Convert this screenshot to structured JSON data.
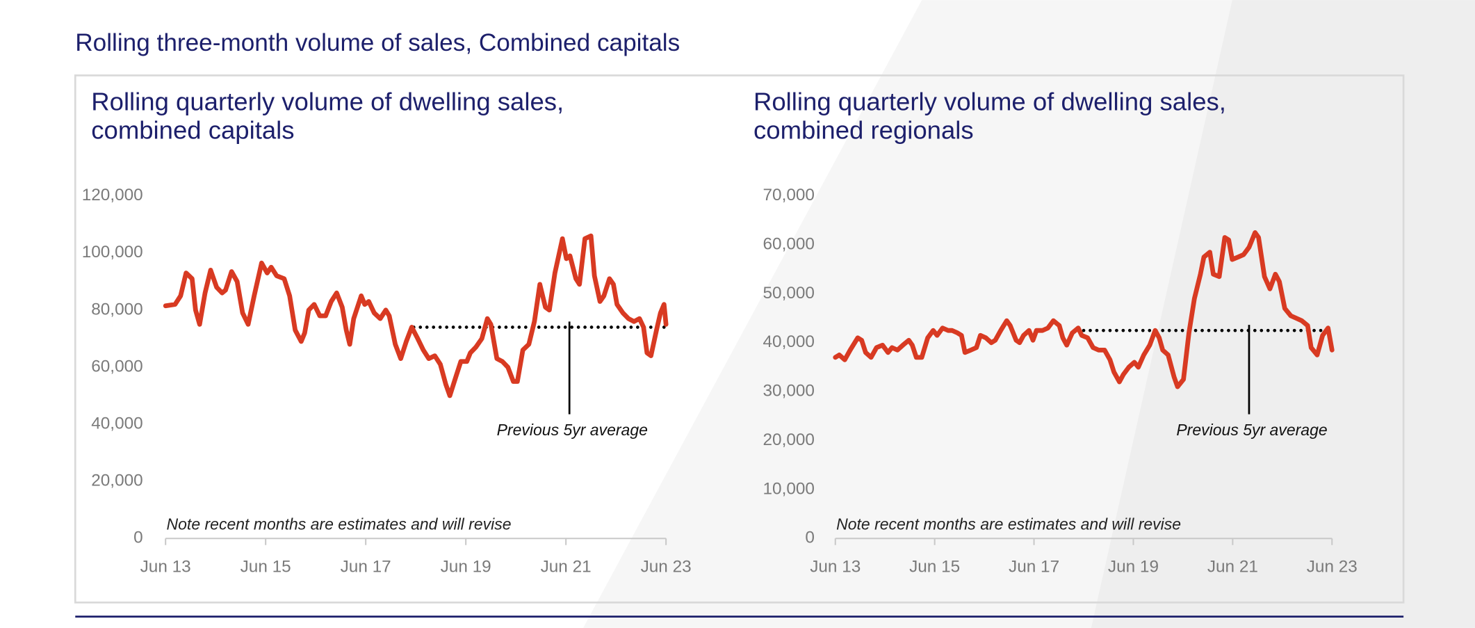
{
  "title": "Rolling three-month volume of sales, Combined capitals",
  "chart_data": [
    {
      "type": "line",
      "title": [
        "Rolling quarterly volume of dwelling sales,",
        "combined capitals"
      ],
      "color": "#d83a22",
      "x": [
        2013.5,
        2013.69,
        2013.8,
        2013.91,
        2014.03,
        2014.1,
        2014.18,
        2014.29,
        2014.4,
        2014.52,
        2014.63,
        2014.7,
        2014.82,
        2014.93,
        2015.04,
        2015.15,
        2015.27,
        2015.42,
        2015.53,
        2015.61,
        2015.72,
        2015.87,
        2015.98,
        2016.09,
        2016.21,
        2016.28,
        2016.36,
        2016.47,
        2016.58,
        2016.7,
        2016.81,
        2016.92,
        2017.03,
        2017.11,
        2017.18,
        2017.26,
        2017.41,
        2017.48,
        2017.56,
        2017.67,
        2017.79,
        2017.9,
        2017.97,
        2018.09,
        2018.2,
        2018.31,
        2018.42,
        2018.54,
        2018.65,
        2018.76,
        2018.88,
        2018.99,
        2019.1,
        2019.18,
        2019.29,
        2019.4,
        2019.52,
        2019.59,
        2019.7,
        2019.82,
        2019.93,
        2020.0,
        2020.12,
        2020.23,
        2020.34,
        2020.45,
        2020.53,
        2020.64,
        2020.76,
        2020.87,
        2020.98,
        2021.09,
        2021.17,
        2021.28,
        2021.43,
        2021.51,
        2021.58,
        2021.7,
        2021.77,
        2021.88,
        2022.0,
        2022.07,
        2022.18,
        2022.26,
        2022.37,
        2022.45,
        2022.52,
        2022.64,
        2022.75,
        2022.86,
        2022.97,
        2023.05,
        2023.12,
        2023.2,
        2023.31,
        2023.39,
        2023.46,
        2023.5
      ],
      "values": [
        81500,
        82000,
        85000,
        93000,
        91000,
        80000,
        75000,
        86000,
        94000,
        88000,
        86000,
        87000,
        93500,
        90000,
        79000,
        75000,
        85000,
        96500,
        93000,
        95000,
        92000,
        91000,
        85000,
        73000,
        69000,
        72000,
        80000,
        82000,
        78000,
        78000,
        83000,
        86000,
        81000,
        73000,
        68000,
        77000,
        85000,
        82000,
        83000,
        79000,
        77000,
        80000,
        78000,
        68000,
        63000,
        69000,
        74000,
        70000,
        66000,
        63000,
        64000,
        61000,
        54000,
        50000,
        56000,
        62000,
        62000,
        65000,
        67000,
        70000,
        77000,
        75000,
        63000,
        62000,
        60000,
        55000,
        55000,
        66000,
        68000,
        76000,
        89000,
        81000,
        80000,
        93000,
        105000,
        98000,
        99000,
        91000,
        89000,
        105000,
        106000,
        92000,
        83000,
        85000,
        91000,
        89000,
        82000,
        79000,
        77000,
        76000,
        77000,
        74000,
        65000,
        64000,
        73000,
        79000,
        82000,
        75000
      ],
      "xlim": [
        2013.5,
        2023.5
      ],
      "xticks": [
        {
          "value": 2013.5,
          "label": "Jun 13"
        },
        {
          "value": 2015.5,
          "label": "Jun 15"
        },
        {
          "value": 2017.5,
          "label": "Jun 17"
        },
        {
          "value": 2019.5,
          "label": "Jun 19"
        },
        {
          "value": 2021.5,
          "label": "Jun 21"
        },
        {
          "value": 2023.5,
          "label": "Jun 23"
        }
      ],
      "ylim": [
        0,
        120000
      ],
      "yticks": [
        0,
        {
          "value": 20000,
          "label": "20,000"
        },
        {
          "value": 40000,
          "label": "40,000"
        },
        {
          "value": 60000,
          "label": "60,000"
        },
        {
          "value": 80000,
          "label": "80,000"
        },
        {
          "value": 100000,
          "label": "100,000"
        },
        {
          "value": 120000,
          "label": "120,000"
        }
      ],
      "average": {
        "label": "Previous 5yr average",
        "value": 74000,
        "x": [
          2018.46,
          2023.5
        ]
      },
      "note": "Note recent months are estimates and will revise"
    },
    {
      "type": "line",
      "title": [
        "Rolling quarterly volume of dwelling sales,",
        "combined regionals"
      ],
      "color": "#d83a22",
      "x": [
        2013.5,
        2013.58,
        2013.69,
        2013.8,
        2013.95,
        2014.03,
        2014.11,
        2014.22,
        2014.33,
        2014.45,
        2014.56,
        2014.64,
        2014.75,
        2014.86,
        2014.98,
        2015.05,
        2015.13,
        2015.24,
        2015.36,
        2015.47,
        2015.55,
        2015.66,
        2015.77,
        2015.85,
        2015.96,
        2016.04,
        2016.11,
        2016.23,
        2016.34,
        2016.42,
        2016.53,
        2016.64,
        2016.72,
        2016.83,
        2016.95,
        2017.02,
        2017.14,
        2017.21,
        2017.29,
        2017.4,
        2017.48,
        2017.55,
        2017.67,
        2017.78,
        2017.89,
        2018.01,
        2018.08,
        2018.16,
        2018.27,
        2018.39,
        2018.46,
        2018.58,
        2018.69,
        2018.8,
        2018.92,
        2019.03,
        2019.11,
        2019.22,
        2019.3,
        2019.41,
        2019.52,
        2019.6,
        2019.71,
        2019.83,
        2019.94,
        2020.02,
        2020.09,
        2020.2,
        2020.32,
        2020.39,
        2020.51,
        2020.62,
        2020.73,
        2020.85,
        2020.92,
        2021.04,
        2021.11,
        2021.23,
        2021.34,
        2021.42,
        2021.49,
        2021.61,
        2021.72,
        2021.83,
        2021.95,
        2022.02,
        2022.14,
        2022.25,
        2022.36,
        2022.44,
        2022.55,
        2022.67,
        2022.78,
        2022.89,
        2023.01,
        2023.08,
        2023.2,
        2023.31,
        2023.42,
        2023.5
      ],
      "values": [
        37000,
        37500,
        36500,
        38500,
        41000,
        40500,
        38000,
        37000,
        39000,
        39500,
        38000,
        39000,
        38500,
        39500,
        40500,
        39500,
        37000,
        37000,
        41000,
        42500,
        41500,
        43000,
        42500,
        42500,
        42000,
        41500,
        38000,
        38500,
        39000,
        41500,
        41000,
        40000,
        40500,
        42500,
        44500,
        43500,
        40500,
        40000,
        41500,
        42500,
        40500,
        42500,
        42500,
        43000,
        44500,
        43500,
        41000,
        39500,
        42000,
        43000,
        41500,
        41000,
        39000,
        38500,
        38500,
        36500,
        34000,
        32000,
        33500,
        35000,
        36000,
        35000,
        37500,
        39500,
        42500,
        41000,
        38500,
        37500,
        33000,
        31000,
        32500,
        42000,
        49000,
        54000,
        57500,
        58500,
        54000,
        53500,
        61500,
        61000,
        57000,
        57500,
        58000,
        59500,
        62500,
        61500,
        53500,
        51000,
        54000,
        52500,
        47000,
        45500,
        45000,
        44500,
        43500,
        39000,
        37500,
        41500,
        43000,
        38500
      ],
      "xlim": [
        2013.5,
        2023.5
      ],
      "xticks": [
        {
          "value": 2013.5,
          "label": "Jun 13"
        },
        {
          "value": 2015.5,
          "label": "Jun 15"
        },
        {
          "value": 2017.5,
          "label": "Jun 17"
        },
        {
          "value": 2019.5,
          "label": "Jun 19"
        },
        {
          "value": 2021.5,
          "label": "Jun 21"
        },
        {
          "value": 2023.5,
          "label": "Jun 23"
        }
      ],
      "ylim": [
        0,
        70000
      ],
      "yticks": [
        0,
        {
          "value": 10000,
          "label": "10,000"
        },
        {
          "value": 20000,
          "label": "20,000"
        },
        {
          "value": 30000,
          "label": "30,000"
        },
        {
          "value": 40000,
          "label": "40,000"
        },
        {
          "value": 50000,
          "label": "50,000"
        },
        {
          "value": 60000,
          "label": "60,000"
        },
        {
          "value": 70000,
          "label": "70,000"
        }
      ],
      "average": {
        "label": "Previous 5yr average",
        "value": 42500,
        "x": [
          2018.5,
          2023.5
        ]
      },
      "note": "Note recent months are estimates and will revise"
    }
  ]
}
